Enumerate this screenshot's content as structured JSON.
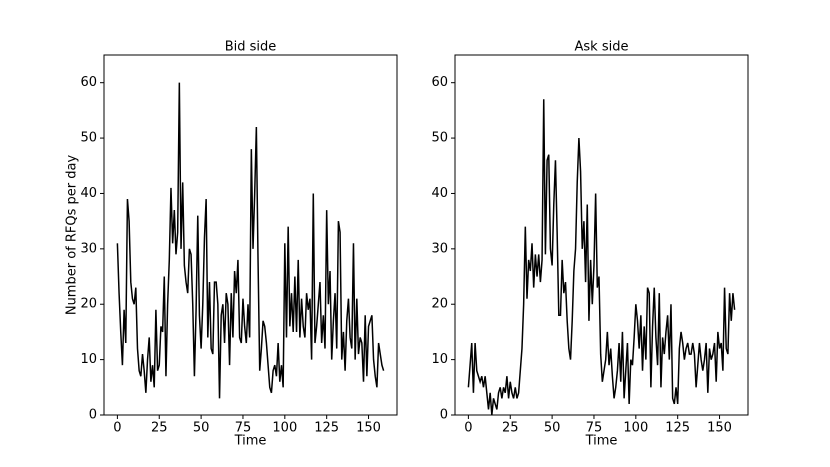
{
  "chart_data": [
    {
      "type": "line",
      "title": "Bid side",
      "xlabel": "Time",
      "ylabel": "Number of RFQs per day",
      "color": "#000000",
      "x": [
        0,
        1,
        2,
        3,
        4,
        5,
        6,
        7,
        8,
        9,
        10,
        11,
        12,
        13,
        14,
        15,
        16,
        17,
        18,
        19,
        20,
        21,
        22,
        23,
        24,
        25,
        26,
        27,
        28,
        29,
        30,
        31,
        32,
        33,
        34,
        35,
        36,
        37,
        38,
        39,
        40,
        41,
        42,
        43,
        44,
        45,
        46,
        47,
        48,
        49,
        50,
        51,
        52,
        53,
        54,
        55,
        56,
        57,
        58,
        59,
        60,
        61,
        62,
        63,
        64,
        65,
        66,
        67,
        68,
        69,
        70,
        71,
        72,
        73,
        74,
        75,
        76,
        77,
        78,
        79,
        80,
        81,
        82,
        83,
        84,
        85,
        86,
        87,
        88,
        89,
        90,
        91,
        92,
        93,
        94,
        95,
        96,
        97,
        98,
        99,
        100,
        101,
        102,
        103,
        104,
        105,
        106,
        107,
        108,
        109,
        110,
        111,
        112,
        113,
        114,
        115,
        116,
        117,
        118,
        119,
        120,
        121,
        122,
        123,
        124,
        125,
        126,
        127,
        128,
        129,
        130,
        131,
        132,
        133,
        134,
        135,
        136,
        137,
        138,
        139,
        140,
        141,
        142,
        143,
        144,
        145,
        146,
        147,
        148,
        149,
        150,
        151,
        152,
        153,
        154,
        155,
        156,
        157,
        158,
        159
      ],
      "values": [
        31,
        22,
        15,
        9,
        19,
        13,
        39,
        35,
        24,
        21,
        20,
        23,
        12,
        8,
        7,
        11,
        8,
        4,
        10,
        14,
        6,
        9,
        5,
        19,
        8,
        9,
        16,
        15,
        25,
        7,
        20,
        28,
        41,
        31,
        37,
        29,
        33,
        60,
        30,
        42,
        27,
        24,
        22,
        30,
        29,
        20,
        7,
        19,
        36,
        18,
        12,
        20,
        32,
        39,
        14,
        24,
        12,
        11,
        24,
        24,
        20,
        3,
        18,
        20,
        13,
        22,
        20,
        9,
        22,
        14,
        26,
        22,
        28,
        14,
        13,
        21,
        16,
        13,
        20,
        14,
        48,
        30,
        40,
        52,
        28,
        8,
        12,
        17,
        16,
        13,
        9,
        5,
        4,
        8,
        9,
        7,
        13,
        6,
        9,
        5,
        31,
        14,
        34,
        16,
        22,
        15,
        25,
        15,
        28,
        14,
        21,
        16,
        14,
        22,
        19,
        21,
        10,
        40,
        13,
        16,
        20,
        24,
        13,
        18,
        12,
        37,
        20,
        26,
        10,
        17,
        22,
        12,
        35,
        33,
        10,
        15,
        8,
        17,
        21,
        14,
        12,
        31,
        10,
        21,
        11,
        14,
        13,
        6,
        18,
        7,
        16,
        17,
        18,
        10,
        7,
        5,
        13,
        11,
        9,
        8
      ],
      "xlim": [
        -8,
        167
      ],
      "ylim": [
        0,
        65
      ],
      "xticks": [
        0,
        25,
        50,
        75,
        100,
        125,
        150
      ],
      "yticks": [
        0,
        10,
        20,
        30,
        40,
        50,
        60
      ]
    },
    {
      "type": "line",
      "title": "Ask side",
      "xlabel": "Time",
      "color": "#000000",
      "x": [
        0,
        1,
        2,
        3,
        4,
        5,
        6,
        7,
        8,
        9,
        10,
        11,
        12,
        13,
        14,
        15,
        16,
        17,
        18,
        19,
        20,
        21,
        22,
        23,
        24,
        25,
        26,
        27,
        28,
        29,
        30,
        31,
        32,
        33,
        34,
        35,
        36,
        37,
        38,
        39,
        40,
        41,
        42,
        43,
        44,
        45,
        46,
        47,
        48,
        49,
        50,
        51,
        52,
        53,
        54,
        55,
        56,
        57,
        58,
        59,
        60,
        61,
        62,
        63,
        64,
        65,
        66,
        67,
        68,
        69,
        70,
        71,
        72,
        73,
        74,
        75,
        76,
        77,
        78,
        79,
        80,
        81,
        82,
        83,
        84,
        85,
        86,
        87,
        88,
        89,
        90,
        91,
        92,
        93,
        94,
        95,
        96,
        97,
        98,
        99,
        100,
        101,
        102,
        103,
        104,
        105,
        106,
        107,
        108,
        109,
        110,
        111,
        112,
        113,
        114,
        115,
        116,
        117,
        118,
        119,
        120,
        121,
        122,
        123,
        124,
        125,
        126,
        127,
        128,
        129,
        130,
        131,
        132,
        133,
        134,
        135,
        136,
        137,
        138,
        139,
        140,
        141,
        142,
        143,
        144,
        145,
        146,
        147,
        148,
        149,
        150,
        151,
        152,
        153,
        154,
        155,
        156,
        157,
        158,
        159
      ],
      "values": [
        5,
        9,
        13,
        4,
        13,
        8,
        7,
        6,
        7,
        5,
        7,
        4,
        1,
        4,
        0,
        3,
        2,
        1,
        4,
        5,
        3,
        5,
        4,
        7,
        3,
        6,
        4,
        3,
        5,
        3,
        4,
        8,
        12,
        20,
        34,
        21,
        28,
        26,
        31,
        23,
        29,
        25,
        29,
        24,
        28,
        57,
        29,
        46,
        47,
        30,
        27,
        38,
        46,
        33,
        18,
        18,
        28,
        22,
        24,
        17,
        12,
        10,
        17,
        26,
        30,
        42,
        50,
        44,
        30,
        35,
        24,
        38,
        17,
        28,
        20,
        27,
        40,
        23,
        25,
        11,
        6,
        8,
        10,
        15,
        9,
        12,
        7,
        3,
        5,
        8,
        13,
        6,
        15,
        3,
        8,
        13,
        2,
        10,
        9,
        14,
        20,
        17,
        12,
        18,
        8,
        16,
        10,
        23,
        22,
        5,
        16,
        23,
        14,
        9,
        22,
        5,
        14,
        11,
        15,
        18,
        10,
        20,
        3,
        2,
        5,
        2,
        12,
        15,
        13,
        10,
        12,
        13,
        11,
        11,
        13,
        11,
        5,
        9,
        13,
        10,
        8,
        10,
        13,
        4,
        12,
        10,
        11,
        13,
        6,
        15,
        12,
        13,
        8,
        23,
        12,
        11,
        22,
        17,
        22,
        19
      ],
      "xlim": [
        -8,
        167
      ],
      "ylim": [
        0,
        65
      ],
      "xticks": [
        0,
        25,
        50,
        75,
        100,
        125,
        150
      ],
      "yticks": [
        0,
        10,
        20,
        30,
        40,
        50,
        60
      ]
    }
  ]
}
